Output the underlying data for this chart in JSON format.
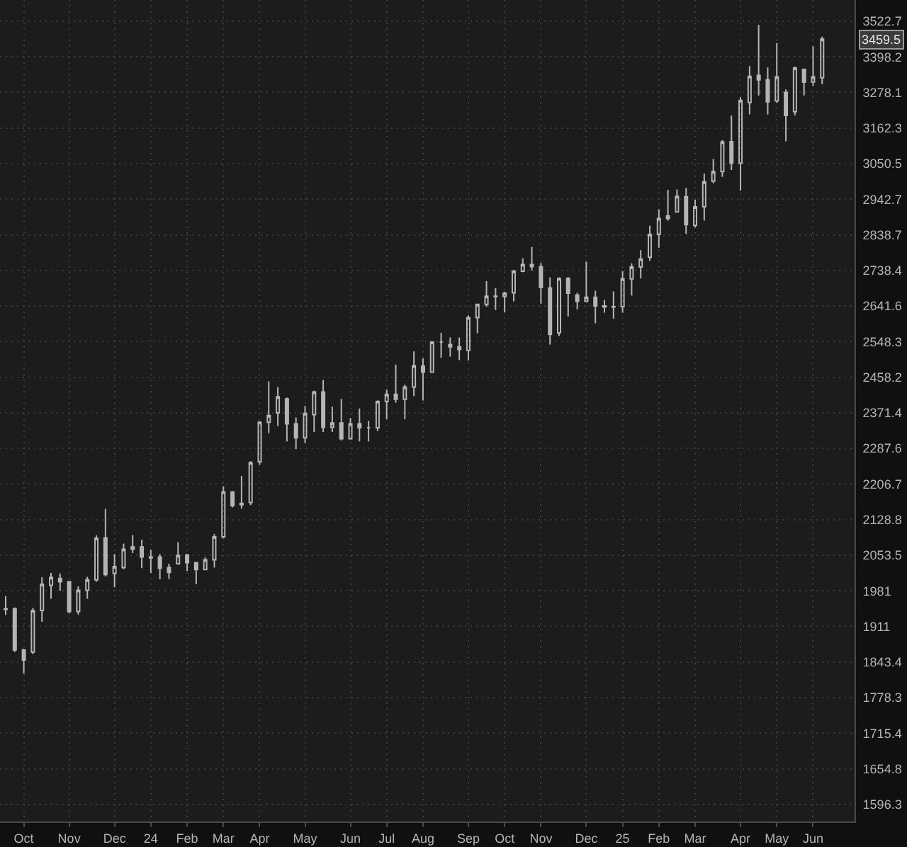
{
  "chart_data": {
    "type": "candlestick",
    "color": "#b4b4b4",
    "log": true,
    "grid": true,
    "x": [
      "2023-09-18",
      "2023-09-25",
      "2023-10-02",
      "2023-10-09",
      "2023-10-16",
      "2023-10-23",
      "2023-10-30",
      "2023-11-06",
      "2023-11-13",
      "2023-11-20",
      "2023-11-27",
      "2023-12-04",
      "2023-12-11",
      "2023-12-18",
      "2023-12-25",
      "2024-01-01",
      "2024-01-08",
      "2024-01-15",
      "2024-01-22",
      "2024-01-29",
      "2024-02-05",
      "2024-02-12",
      "2024-02-19",
      "2024-02-26",
      "2024-03-04",
      "2024-03-11",
      "2024-03-18",
      "2024-03-25",
      "2024-04-01",
      "2024-04-08",
      "2024-04-15",
      "2024-04-22",
      "2024-04-29",
      "2024-05-06",
      "2024-05-13",
      "2024-05-20",
      "2024-05-27",
      "2024-06-03",
      "2024-06-10",
      "2024-06-17",
      "2024-06-24",
      "2024-07-01",
      "2024-07-08",
      "2024-07-15",
      "2024-07-22",
      "2024-07-29",
      "2024-08-05",
      "2024-08-12",
      "2024-08-19",
      "2024-08-26",
      "2024-09-02",
      "2024-09-09",
      "2024-09-16",
      "2024-09-23",
      "2024-09-30",
      "2024-10-07",
      "2024-10-14",
      "2024-10-21",
      "2024-10-28",
      "2024-11-04",
      "2024-11-11",
      "2024-11-18",
      "2024-11-25",
      "2024-12-02",
      "2024-12-09",
      "2024-12-16",
      "2024-12-23",
      "2024-12-30",
      "2025-01-06",
      "2025-01-13",
      "2025-01-20",
      "2025-01-27",
      "2025-02-03",
      "2025-02-10",
      "2025-02-17",
      "2025-02-24",
      "2025-03-03",
      "2025-03-10",
      "2025-03-17",
      "2025-03-24",
      "2025-03-31",
      "2025-04-07",
      "2025-04-14",
      "2025-04-21",
      "2025-04-28",
      "2025-05-05",
      "2025-05-12",
      "2025-05-19",
      "2025-05-26",
      "2025-06-02",
      "2025-06-09"
    ],
    "ohlc": [
      [
        1944,
        1970,
        1933,
        1945
      ],
      [
        1945,
        1948,
        1862,
        1866
      ],
      [
        1866,
        1868,
        1822,
        1847
      ],
      [
        1862,
        1947,
        1858,
        1942
      ],
      [
        1942,
        2008,
        1920,
        1994
      ],
      [
        1992,
        2017,
        1965,
        2008
      ],
      [
        2006,
        2016,
        1981,
        1999
      ],
      [
        1999,
        2001,
        1936,
        1940
      ],
      [
        1940,
        1990,
        1934,
        1982
      ],
      [
        1982,
        2009,
        1965,
        2003
      ],
      [
        2003,
        2095,
        1999,
        2089
      ],
      [
        2090,
        2152,
        2010,
        2014
      ],
      [
        2016,
        2056,
        1988,
        2030
      ],
      [
        2028,
        2078,
        2025,
        2066
      ],
      [
        2066,
        2096,
        2058,
        2071
      ],
      [
        2071,
        2086,
        2027,
        2050
      ],
      [
        2050,
        2065,
        2017,
        2048
      ],
      [
        2050,
        2056,
        2004,
        2027
      ],
      [
        2028,
        2036,
        2005,
        2018
      ],
      [
        2036,
        2081,
        2034,
        2053
      ],
      [
        2054,
        2056,
        2021,
        2038
      ],
      [
        2038,
        2039,
        1994,
        2024
      ],
      [
        2024,
        2049,
        2023,
        2044
      ],
      [
        2044,
        2098,
        2028,
        2092
      ],
      [
        2092,
        2202,
        2089,
        2189
      ],
      [
        2189,
        2191,
        2155,
        2159
      ],
      [
        2161,
        2225,
        2152,
        2164
      ],
      [
        2166,
        2258,
        2160,
        2255
      ],
      [
        2257,
        2351,
        2250,
        2349
      ],
      [
        2349,
        2448,
        2323,
        2365
      ],
      [
        2371,
        2434,
        2340,
        2410
      ],
      [
        2405,
        2408,
        2304,
        2345
      ],
      [
        2345,
        2360,
        2286,
        2312
      ],
      [
        2312,
        2388,
        2300,
        2370
      ],
      [
        2367,
        2425,
        2326,
        2422
      ],
      [
        2422,
        2451,
        2326,
        2337
      ],
      [
        2337,
        2386,
        2326,
        2347
      ],
      [
        2347,
        2405,
        2306,
        2310
      ],
      [
        2310,
        2359,
        2308,
        2345
      ],
      [
        2345,
        2382,
        2304,
        2336
      ],
      [
        2336,
        2352,
        2304,
        2336
      ],
      [
        2336,
        2401,
        2328,
        2399
      ],
      [
        2399,
        2428,
        2356,
        2416
      ],
      [
        2416,
        2490,
        2396,
        2404
      ],
      [
        2404,
        2440,
        2356,
        2434
      ],
      [
        2434,
        2523,
        2412,
        2487
      ],
      [
        2486,
        2505,
        2401,
        2471
      ],
      [
        2471,
        2549,
        2469,
        2547
      ],
      [
        2547,
        2571,
        2507,
        2547
      ],
      [
        2541,
        2559,
        2510,
        2535
      ],
      [
        2535,
        2559,
        2501,
        2528
      ],
      [
        2526,
        2617,
        2500,
        2611
      ],
      [
        2611,
        2648,
        2570,
        2646
      ],
      [
        2646,
        2709,
        2640,
        2668
      ],
      [
        2668,
        2690,
        2631,
        2667
      ],
      [
        2667,
        2680,
        2625,
        2676
      ],
      [
        2677,
        2740,
        2654,
        2736
      ],
      [
        2736,
        2772,
        2733,
        2755
      ],
      [
        2755,
        2804,
        2738,
        2749
      ],
      [
        2749,
        2759,
        2648,
        2692
      ],
      [
        2690,
        2719,
        2541,
        2567
      ],
      [
        2571,
        2719,
        2563,
        2716
      ],
      [
        2716,
        2720,
        2614,
        2676
      ],
      [
        2671,
        2677,
        2633,
        2654
      ],
      [
        2654,
        2762,
        2652,
        2665
      ],
      [
        2665,
        2683,
        2596,
        2642
      ],
      [
        2642,
        2658,
        2624,
        2639
      ],
      [
        2639,
        2681,
        2608,
        2640
      ],
      [
        2640,
        2736,
        2624,
        2715
      ],
      [
        2715,
        2758,
        2670,
        2748
      ],
      [
        2748,
        2795,
        2716,
        2770
      ],
      [
        2775,
        2865,
        2765,
        2840
      ],
      [
        2840,
        2913,
        2802,
        2886
      ],
      [
        2886,
        2971,
        2880,
        2893
      ],
      [
        2905,
        2972,
        2903,
        2951
      ],
      [
        2950,
        2976,
        2842,
        2868
      ],
      [
        2866,
        2941,
        2860,
        2920
      ],
      [
        2920,
        3020,
        2880,
        2995
      ],
      [
        2997,
        3065,
        2990,
        3026
      ],
      [
        3026,
        3124,
        3010,
        3118
      ],
      [
        3119,
        3202,
        3031,
        3052
      ],
      [
        3052,
        3262,
        2968,
        3252
      ],
      [
        3245,
        3366,
        3206,
        3332
      ],
      [
        3335,
        3510,
        3268,
        3320
      ],
      [
        3320,
        3362,
        3206,
        3247
      ],
      [
        3250,
        3446,
        3244,
        3330
      ],
      [
        3278,
        3288,
        3120,
        3203
      ],
      [
        3215,
        3365,
        3203,
        3360
      ],
      [
        3355,
        3358,
        3268,
        3312
      ],
      [
        3313,
        3435,
        3300,
        3330
      ],
      [
        3327,
        3468,
        3305,
        3459.5
      ]
    ],
    "xlim": [
      "2023-09-13T15:00",
      "2025-07-04"
    ],
    "xticks": [
      {
        "value": "2023-10-02",
        "label": "Oct"
      },
      {
        "value": "2023-11-06",
        "label": "Nov"
      },
      {
        "value": "2023-12-11",
        "label": "Dec"
      },
      {
        "value": "2024-01-08",
        "label": "24"
      },
      {
        "value": "2024-02-05",
        "label": "Feb"
      },
      {
        "value": "2024-03-04",
        "label": "Mar"
      },
      {
        "value": "2024-04-01",
        "label": "Apr"
      },
      {
        "value": "2024-05-06",
        "label": "May"
      },
      {
        "value": "2024-06-10",
        "label": "Jun"
      },
      {
        "value": "2024-07-08",
        "label": "Jul"
      },
      {
        "value": "2024-08-05",
        "label": "Aug"
      },
      {
        "value": "2024-09-09",
        "label": "Sep"
      },
      {
        "value": "2024-10-07",
        "label": "Oct"
      },
      {
        "value": "2024-11-04",
        "label": "Nov"
      },
      {
        "value": "2024-12-09",
        "label": "Dec"
      },
      {
        "value": "2025-01-06",
        "label": "25"
      },
      {
        "value": "2025-02-03",
        "label": "Feb"
      },
      {
        "value": "2025-03-03",
        "label": "Mar"
      },
      {
        "value": "2025-04-07",
        "label": "Apr"
      },
      {
        "value": "2025-05-05",
        "label": "May"
      },
      {
        "value": "2025-06-02",
        "label": "Jun"
      }
    ],
    "ylim": [
      1569,
      3599
    ],
    "yticks": [
      1596.3,
      1654.8,
      1715.4,
      1778.3,
      1843.4,
      1911,
      1981,
      2053.5,
      2128.8,
      2206.7,
      2287.6,
      2371.4,
      2458.2,
      2548.3,
      2641.6,
      2738.4,
      2838.7,
      2942.7,
      3050.5,
      3162.3,
      3278.1,
      3398.2,
      3522.7
    ],
    "annotations": [
      "3459.5"
    ]
  }
}
